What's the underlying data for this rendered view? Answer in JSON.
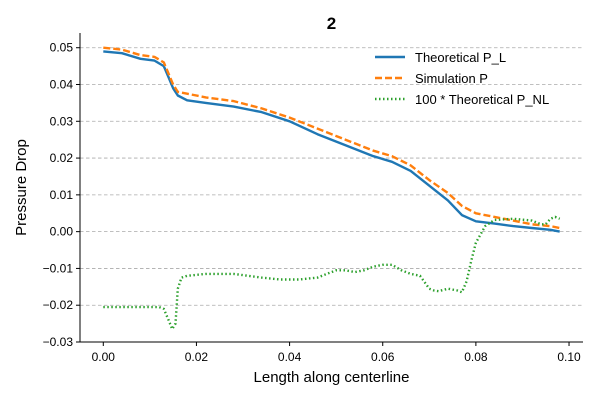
{
  "chart_data": {
    "type": "line",
    "title": "2",
    "xlabel": "Length along centerline",
    "ylabel": "Pressure Drop",
    "xlim": [
      -0.005,
      0.103
    ],
    "ylim": [
      -0.03,
      0.054
    ],
    "xticks": [
      0.0,
      0.02,
      0.04,
      0.06,
      0.08,
      0.1
    ],
    "xtick_labels": [
      "0.00",
      "0.02",
      "0.04",
      "0.06",
      "0.08",
      "0.10"
    ],
    "yticks": [
      0.05,
      0.04,
      0.03,
      0.02,
      0.01,
      0.0,
      -0.01,
      -0.02,
      -0.03
    ],
    "ytick_labels": [
      "0.05",
      "0.04",
      "0.03",
      "0.02",
      "0.01",
      "0.00",
      "−0.01",
      "−0.02",
      "−0.03"
    ],
    "grid": "horizontal dashed",
    "legend_position": "top-right",
    "series": [
      {
        "name": "Theoretical P_L",
        "color": "#1f77b4",
        "style": "solid",
        "x": [
          0.0,
          0.004,
          0.008,
          0.011,
          0.013,
          0.014,
          0.015,
          0.016,
          0.018,
          0.022,
          0.028,
          0.034,
          0.04,
          0.046,
          0.052,
          0.058,
          0.062,
          0.066,
          0.07,
          0.074,
          0.077,
          0.08,
          0.084,
          0.088,
          0.092,
          0.096,
          0.098
        ],
        "y": [
          0.049,
          0.0485,
          0.047,
          0.0465,
          0.045,
          0.042,
          0.039,
          0.037,
          0.0357,
          0.035,
          0.034,
          0.0325,
          0.03,
          0.0265,
          0.0235,
          0.0205,
          0.019,
          0.0165,
          0.0125,
          0.0085,
          0.0045,
          0.0028,
          0.0022,
          0.0015,
          0.001,
          0.0005,
          0.0
        ]
      },
      {
        "name": "Simulation P",
        "color": "#ff7f0e",
        "style": "dashed",
        "x": [
          0.0,
          0.004,
          0.008,
          0.011,
          0.013,
          0.014,
          0.015,
          0.016,
          0.018,
          0.022,
          0.028,
          0.034,
          0.04,
          0.046,
          0.052,
          0.058,
          0.062,
          0.066,
          0.07,
          0.074,
          0.077,
          0.08,
          0.084,
          0.088,
          0.092,
          0.096,
          0.098
        ],
        "y": [
          0.05,
          0.0495,
          0.048,
          0.0475,
          0.046,
          0.043,
          0.04,
          0.038,
          0.0375,
          0.0365,
          0.0355,
          0.0335,
          0.031,
          0.028,
          0.025,
          0.022,
          0.0205,
          0.018,
          0.014,
          0.0105,
          0.007,
          0.005,
          0.004,
          0.003,
          0.002,
          0.0015,
          0.001
        ]
      },
      {
        "name": "100 * Theoretical P_NL",
        "color": "#2ca02c",
        "style": "dotted",
        "x": [
          0.0,
          0.004,
          0.008,
          0.012,
          0.013,
          0.014,
          0.0148,
          0.0155,
          0.016,
          0.0168,
          0.018,
          0.022,
          0.028,
          0.034,
          0.038,
          0.042,
          0.046,
          0.048,
          0.05,
          0.052,
          0.054,
          0.056,
          0.058,
          0.06,
          0.062,
          0.064,
          0.066,
          0.068,
          0.07,
          0.071,
          0.072,
          0.074,
          0.076,
          0.077,
          0.078,
          0.079,
          0.08,
          0.082,
          0.084,
          0.088,
          0.092,
          0.094,
          0.095,
          0.096,
          0.097,
          0.098
        ],
        "y": [
          -0.0205,
          -0.0205,
          -0.0205,
          -0.0205,
          -0.021,
          -0.024,
          -0.0265,
          -0.025,
          -0.0155,
          -0.0125,
          -0.012,
          -0.0115,
          -0.0115,
          -0.0125,
          -0.013,
          -0.013,
          -0.0125,
          -0.0115,
          -0.0105,
          -0.0105,
          -0.011,
          -0.0105,
          -0.0095,
          -0.009,
          -0.009,
          -0.0105,
          -0.0115,
          -0.012,
          -0.0155,
          -0.016,
          -0.0162,
          -0.0155,
          -0.016,
          -0.0165,
          -0.0135,
          -0.008,
          -0.003,
          0.0015,
          0.0032,
          0.0035,
          0.003,
          0.002,
          0.002,
          0.0035,
          0.004,
          0.0035
        ]
      }
    ]
  }
}
